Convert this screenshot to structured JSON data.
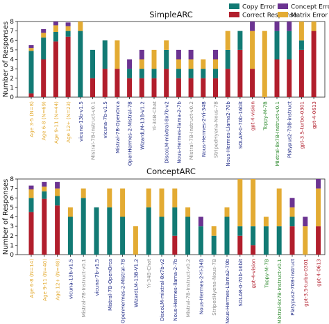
{
  "legend": {
    "entries": [
      {
        "label": "Copy Error",
        "color": "#127a74"
      },
      {
        "label": "Correct Response",
        "color": "#b11e2c"
      },
      {
        "label": "Concept Error",
        "color": "#6b3391"
      },
      {
        "label": "Matrix Error",
        "color": "#e3ab33"
      }
    ]
  },
  "chart_data": [
    {
      "type": "bar",
      "stacked": true,
      "title": "SimpleARC",
      "ylabel": "Number of Responses",
      "ylim": [
        0,
        8
      ],
      "yticks": [
        0,
        1,
        2,
        3,
        4,
        5,
        6,
        7,
        8
      ],
      "grid": false,
      "legend_position": "top",
      "categories": [
        "Age 3-5 (N=8)",
        "Age 6-8 (N=69)",
        "Age 9-11 (N=44)",
        "Age 12+ (N=23)",
        "vicuna-13b-v1.5",
        "Mistral-7B-Instruct-v0.1",
        "vicuna-7b-v1.5",
        "Mistral-7B-OpenOrca",
        "OpenHermes-2-Mistral-7B",
        "WizardLM-13B-V1.2",
        "Yi-34B-Chat",
        "DiscoLM-mixtral-8x7b-v2",
        "Nous-Hermes-llama-2-7b",
        "Mistral-7B-Instruct-v0.2",
        "Nous-Hermes-2-Yi-34B",
        "StripedHyena-Nous-7B",
        "Nous-Hermes-Llama2-70b",
        "SOLAR-0-70b-16bit",
        "gpt-4-vision",
        "Toppy-M-7B",
        "Mixtral-8x7B-Instruct-v0.1",
        "Platypus2-70B-instruct",
        "gpt-3.5-turbo-0301",
        "gpt-4-0613"
      ],
      "category_colors": [
        "#e3ab33",
        "#e3ab33",
        "#e3ab33",
        "#e3ab33",
        "#1f2a86",
        "#8a8a8a",
        "#1f2a86",
        "#1f2a86",
        "#1f2a86",
        "#1f2a86",
        "#8a8a8a",
        "#1f2a86",
        "#1f2a86",
        "#8a8a8a",
        "#1f2a86",
        "#8a8a8a",
        "#1f2a86",
        "#1f2a86",
        "#b11e2c",
        "#2d8a2d",
        "#2d8a2d",
        "#1f2a86",
        "#b11e2c",
        "#b11e2c"
      ],
      "series": [
        {
          "name": "Correct Response",
          "color": "#b11e2c",
          "values": [
            0.4,
            4.0,
            5.9,
            6.4,
            0,
            2.0,
            3.0,
            3.0,
            2.0,
            2.0,
            2.0,
            3.0,
            2.0,
            2.0,
            2.0,
            2.0,
            3.0,
            5.0,
            3.0,
            0,
            4.0,
            4.0,
            5.0,
            7.0
          ]
        },
        {
          "name": "Copy Error",
          "color": "#127a74",
          "values": [
            4.5,
            2.3,
            1.0,
            0.6,
            7.0,
            3.0,
            3.0,
            0,
            1.0,
            1.0,
            1.0,
            2.0,
            1.0,
            1.0,
            1.0,
            1.0,
            2.0,
            2.0,
            0,
            0,
            3.0,
            3.0,
            1.0,
            0
          ]
        },
        {
          "name": "Matrix Error",
          "color": "#e3ab33",
          "values": [
            0.3,
            0.5,
            0.7,
            0.5,
            1.0,
            0,
            0,
            3.0,
            0,
            1.0,
            2.0,
            1.0,
            1.0,
            1.0,
            1.0,
            1.0,
            2.0,
            0,
            4.0,
            7.0,
            0,
            0,
            2.0,
            1.0
          ]
        },
        {
          "name": "Concept Error",
          "color": "#6b3391",
          "values": [
            0.3,
            0.4,
            0.4,
            0.4,
            0,
            0,
            0,
            0,
            1.0,
            1.0,
            0,
            0,
            1.0,
            1.0,
            0,
            1.0,
            0,
            0,
            1.0,
            0,
            1.0,
            1.0,
            0,
            0
          ]
        }
      ]
    },
    {
      "type": "bar",
      "stacked": true,
      "title": "ConceptARC",
      "ylabel": "Number of Responses",
      "ylim": [
        0,
        8
      ],
      "yticks": [
        0,
        1,
        2,
        3,
        4,
        5,
        6,
        7,
        8
      ],
      "grid": false,
      "categories": [
        "Age 6-8 (N=14)",
        "Age 9-11 (N=40)",
        "Age 12+ (N=48)",
        "vicuna-13b-v1.5",
        "Mistral-7B-Instruct-v0.1",
        "vicuna-7b-v1.5",
        "Mistral-7B-OpenOrca",
        "OpenHermes-2-Mistral-7B",
        "WizardLM-13B-V1.2",
        "Yi-34B-Chat",
        "DiscoLM-mixtral-8x7b-v2",
        "Nous-Hermes-llama-2-7b",
        "Mistral-7B-Instruct-v0.2",
        "Nous-Hermes-2-Yi-34B",
        "StripedHyena-Nous-7B",
        "Nous-Hermes-Llama2-70b",
        "SOLAR-0-70b-16bit",
        "gpt-4-vision",
        "Toppy-M-7B",
        "Mixtral-8x7B-Instruct-v0.1",
        "Platypus2-70B-instruct",
        "gpt-3.5-turbo-0301",
        "gpt-4-0613"
      ],
      "category_colors": [
        "#e3ab33",
        "#e3ab33",
        "#e3ab33",
        "#1f2a86",
        "#8a8a8a",
        "#1f2a86",
        "#1f2a86",
        "#1f2a86",
        "#1f2a86",
        "#8a8a8a",
        "#1f2a86",
        "#1f2a86",
        "#8a8a8a",
        "#1f2a86",
        "#8a8a8a",
        "#1f2a86",
        "#1f2a86",
        "#b11e2c",
        "#2d8a2d",
        "#2d8a2d",
        "#1f2a86",
        "#b11e2c",
        "#b11e2c"
      ],
      "series": [
        {
          "name": "Correct Response",
          "color": "#b11e2c",
          "values": [
            4.5,
            5.9,
            5.2,
            0,
            0,
            0,
            0,
            0,
            0,
            0,
            0,
            2.0,
            0,
            0,
            0,
            0,
            2.0,
            1.0,
            0,
            0,
            3.0,
            0,
            3.0
          ]
        },
        {
          "name": "Copy Error",
          "color": "#127a74",
          "values": [
            1.5,
            0.8,
            1.0,
            4.0,
            6.0,
            5.0,
            5.0,
            4.0,
            0,
            5.0,
            4.0,
            3.0,
            4.0,
            3.0,
            2.0,
            4.0,
            1.0,
            2.0,
            3.0,
            3.0,
            1.0,
            0,
            0
          ]
        },
        {
          "name": "Matrix Error",
          "color": "#e3ab33",
          "values": [
            0.9,
            0.5,
            0.8,
            1.0,
            1.0,
            0,
            2.0,
            3.0,
            3.0,
            2.0,
            3.0,
            2.0,
            1.0,
            0,
            1.0,
            1.0,
            5.0,
            5.0,
            1.0,
            4.0,
            1.0,
            3.0,
            4.0
          ]
        },
        {
          "name": "Concept Error",
          "color": "#6b3391",
          "values": [
            0.4,
            0.5,
            0.7,
            0,
            0,
            0,
            0,
            0,
            0,
            0,
            0,
            0,
            0,
            1.0,
            0,
            0,
            0,
            0,
            0,
            0,
            1.0,
            1.0,
            1.0
          ]
        }
      ]
    }
  ]
}
